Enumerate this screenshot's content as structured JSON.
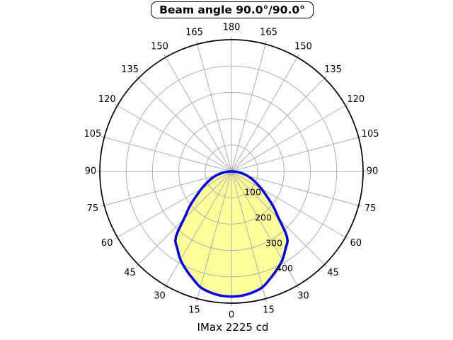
{
  "title": "Beam angle 90.0°/90.0°",
  "footer": "IMax 2225 cd",
  "colors": {
    "curve": "#0000ee",
    "fill": "#ffff99",
    "grid": "#b0b0b0",
    "tick": "#a0a0a0",
    "outer_ring": "#000000",
    "text": "#000000",
    "background": "#ffffff"
  },
  "chart_data": {
    "type": "line",
    "coordinate_system": "polar",
    "title": "Beam angle 90.0°/90.0°",
    "annotation": "IMax 2225 cd",
    "imax_cd": 2225,
    "beam_angle_deg": "90.0/90.0",
    "grid": true,
    "angle_tick_step_deg": 15,
    "angle_tick_labels": [
      "0",
      "15",
      "30",
      "45",
      "60",
      "75",
      "90",
      "105",
      "120",
      "135",
      "150",
      "165",
      "180"
    ],
    "radial_tick_labels": [
      "100",
      "200",
      "300",
      "400"
    ],
    "r_axis": {
      "min": 0,
      "max": 500,
      "ring_interval": 100
    },
    "series": [
      {
        "name": "luminous-intensity-distribution",
        "symmetric_mirror": true,
        "angles_deg": [
          0,
          5,
          10,
          15,
          20,
          25,
          30,
          35,
          40,
          45,
          50,
          55,
          60,
          65,
          70,
          75,
          80,
          85,
          90
        ],
        "values_cd": [
          475,
          473,
          466,
          455,
          432,
          410,
          387,
          358,
          330,
          255,
          208,
          163,
          131,
          104,
          82,
          61,
          40,
          20,
          0
        ]
      }
    ]
  }
}
